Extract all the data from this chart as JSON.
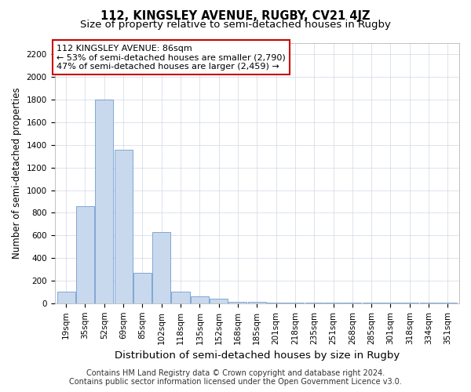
{
  "title": "112, KINGSLEY AVENUE, RUGBY, CV21 4JZ",
  "subtitle": "Size of property relative to semi-detached houses in Rugby",
  "xlabel": "Distribution of semi-detached houses by size in Rugby",
  "ylabel": "Number of semi-detached properties",
  "footer_line1": "Contains HM Land Registry data © Crown copyright and database right 2024.",
  "footer_line2": "Contains public sector information licensed under the Open Government Licence v3.0.",
  "annotation_line1": "112 KINGSLEY AVENUE: 86sqm",
  "annotation_line2": "← 53% of semi-detached houses are smaller (2,790)",
  "annotation_line3": "47% of semi-detached houses are larger (2,459) →",
  "bar_labels": [
    "19sqm",
    "35sqm",
    "52sqm",
    "69sqm",
    "85sqm",
    "102sqm",
    "118sqm",
    "135sqm",
    "152sqm",
    "168sqm",
    "185sqm",
    "201sqm",
    "218sqm",
    "235sqm",
    "251sqm",
    "268sqm",
    "285sqm",
    "301sqm",
    "318sqm",
    "334sqm",
    "351sqm"
  ],
  "bar_heights": [
    100,
    860,
    1800,
    1360,
    270,
    630,
    100,
    60,
    40,
    10,
    10,
    5,
    5,
    5,
    5,
    5,
    5,
    5,
    5,
    5,
    5
  ],
  "bar_color": "#c8d9ee",
  "bar_edge_color": "#5b8bc9",
  "annotation_box_color": "#cc0000",
  "ylim": [
    0,
    2300
  ],
  "yticks": [
    0,
    200,
    400,
    600,
    800,
    1000,
    1200,
    1400,
    1600,
    1800,
    2000,
    2200
  ],
  "bg_color": "#ffffff",
  "grid_color": "#d0d8e4",
  "title_fontsize": 10.5,
  "subtitle_fontsize": 9.5,
  "xlabel_fontsize": 9.5,
  "ylabel_fontsize": 8.5,
  "tick_fontsize": 7.5,
  "annotation_fontsize": 8,
  "footer_fontsize": 7
}
